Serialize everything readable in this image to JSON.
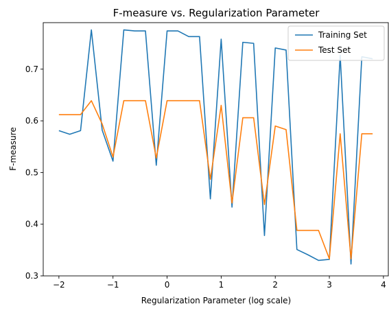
{
  "chart_data": {
    "type": "line",
    "title": "F-measure vs. Regularization Parameter",
    "xlabel": "Regularization Parameter (log scale)",
    "ylabel": "F-measure",
    "xlim": [
      -2.29,
      4.09
    ],
    "ylim": [
      0.3,
      0.79
    ],
    "xticks": [
      -2,
      -1,
      0,
      1,
      2,
      3,
      4
    ],
    "xtick_labels": [
      "−2",
      "−1",
      "0",
      "1",
      "2",
      "3",
      "4"
    ],
    "yticks": [
      0.3,
      0.4,
      0.5,
      0.6,
      0.7
    ],
    "ytick_labels": [
      "0.3",
      "0.4",
      "0.5",
      "0.6",
      "0.7"
    ],
    "grid": false,
    "legend_position": "top-right",
    "x": [
      -2.0,
      -1.8,
      -1.6,
      -1.4,
      -1.2,
      -1.0,
      -0.8,
      -0.6,
      -0.4,
      -0.2,
      0.0,
      0.2,
      0.4,
      0.6,
      0.8,
      1.0,
      1.2,
      1.4,
      1.6,
      1.8,
      2.0,
      2.2,
      2.4,
      2.6,
      2.8,
      3.0,
      3.2,
      3.4,
      3.6,
      3.8
    ],
    "series": [
      {
        "name": "Training Set",
        "color": "#1f77b4",
        "values": [
          0.581,
          0.574,
          0.581,
          0.776,
          0.582,
          0.522,
          0.776,
          0.774,
          0.774,
          0.514,
          0.774,
          0.774,
          0.763,
          0.763,
          0.449,
          0.758,
          0.433,
          0.752,
          0.75,
          0.378,
          0.741,
          0.737,
          0.351,
          0.341,
          0.33,
          0.332,
          0.727,
          0.323,
          0.724,
          0.72
        ]
      },
      {
        "name": "Test Set",
        "color": "#ff7f0e",
        "values": [
          0.612,
          0.612,
          0.612,
          0.639,
          0.594,
          0.53,
          0.639,
          0.639,
          0.639,
          0.528,
          0.639,
          0.639,
          0.639,
          0.639,
          0.487,
          0.63,
          0.441,
          0.606,
          0.606,
          0.438,
          0.59,
          0.583,
          0.388,
          0.388,
          0.388,
          0.333,
          0.575,
          0.333,
          0.575,
          0.575
        ]
      }
    ]
  }
}
